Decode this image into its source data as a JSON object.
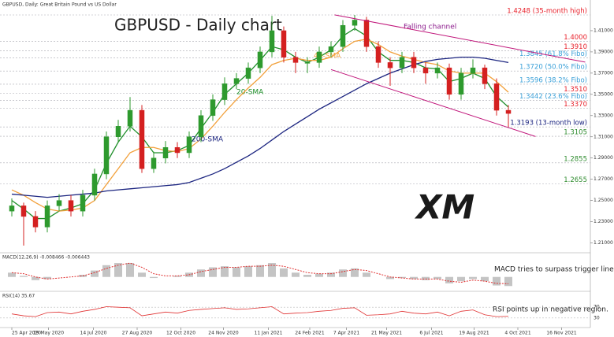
{
  "logo": "XM",
  "chart_data": [
    {
      "type": "candlestick",
      "header": "GBPUSD, Daily: Great Britain Pound vs US Dollar",
      "title": "GBPUSD - Daily chart",
      "open": [
        1.24,
        1.245,
        1.235,
        1.225,
        1.245,
        1.25,
        1.24,
        1.255,
        1.275,
        1.31,
        1.32,
        1.335,
        1.28,
        1.29,
        1.3,
        1.295,
        1.31,
        1.33,
        1.345,
        1.36,
        1.365,
        1.375,
        1.39,
        1.41,
        1.385,
        1.38,
        1.38,
        1.39,
        1.395,
        1.415,
        1.42,
        1.395,
        1.38,
        1.375,
        1.385,
        1.375,
        1.37,
        1.375,
        1.35,
        1.37,
        1.375,
        1.36,
        1.335
      ],
      "high": [
        1.252,
        1.248,
        1.24,
        1.25,
        1.256,
        1.255,
        1.26,
        1.28,
        1.315,
        1.326,
        1.3475,
        1.34,
        1.296,
        1.306,
        1.305,
        1.315,
        1.335,
        1.35,
        1.366,
        1.37,
        1.38,
        1.395,
        1.424,
        1.414,
        1.39,
        1.385,
        1.395,
        1.4,
        1.42,
        1.4248,
        1.423,
        1.4,
        1.385,
        1.39,
        1.39,
        1.38,
        1.38,
        1.379,
        1.375,
        1.383,
        1.378,
        1.365,
        1.34
      ],
      "low": [
        1.235,
        1.2075,
        1.22,
        1.22,
        1.24,
        1.235,
        1.235,
        1.25,
        1.27,
        1.305,
        1.315,
        1.276,
        1.276,
        1.285,
        1.29,
        1.29,
        1.305,
        1.325,
        1.34,
        1.355,
        1.36,
        1.37,
        1.385,
        1.38,
        1.37,
        1.37,
        1.375,
        1.385,
        1.39,
        1.41,
        1.39,
        1.375,
        1.358,
        1.37,
        1.37,
        1.36,
        1.365,
        1.345,
        1.345,
        1.365,
        1.355,
        1.33,
        1.3193
      ],
      "close": [
        1.245,
        1.235,
        1.225,
        1.245,
        1.25,
        1.24,
        1.255,
        1.275,
        1.31,
        1.32,
        1.335,
        1.28,
        1.29,
        1.3,
        1.295,
        1.31,
        1.33,
        1.345,
        1.36,
        1.365,
        1.375,
        1.39,
        1.41,
        1.385,
        1.38,
        1.38,
        1.39,
        1.395,
        1.415,
        1.42,
        1.395,
        1.38,
        1.375,
        1.385,
        1.375,
        1.37,
        1.375,
        1.35,
        1.37,
        1.375,
        1.36,
        1.335,
        1.332
      ],
      "up_color": "#2e9a2e",
      "down_color": "#d42020",
      "series": [
        {
          "name": "20-SMA",
          "color": "#1f8f2a",
          "values": [
            1.25,
            1.242,
            1.233,
            1.233,
            1.24,
            1.243,
            1.247,
            1.26,
            1.285,
            1.305,
            1.32,
            1.31,
            1.295,
            1.295,
            1.297,
            1.302,
            1.318,
            1.333,
            1.35,
            1.36,
            1.37,
            1.382,
            1.395,
            1.392,
            1.385,
            1.38,
            1.385,
            1.392,
            1.405,
            1.412,
            1.405,
            1.39,
            1.382,
            1.382,
            1.38,
            1.375,
            1.374,
            1.362,
            1.365,
            1.37,
            1.365,
            1.348,
            1.338
          ]
        },
        {
          "name": "40-SMA",
          "color": "#f2a03a",
          "values": [
            1.26,
            1.255,
            1.248,
            1.242,
            1.24,
            1.241,
            1.243,
            1.25,
            1.265,
            1.28,
            1.295,
            1.3,
            1.3,
            1.297,
            1.296,
            1.299,
            1.308,
            1.32,
            1.333,
            1.345,
            1.356,
            1.366,
            1.378,
            1.382,
            1.384,
            1.382,
            1.382,
            1.385,
            1.393,
            1.4,
            1.402,
            1.397,
            1.39,
            1.386,
            1.383,
            1.38,
            1.378,
            1.372,
            1.37,
            1.37,
            1.37,
            1.362,
            1.352
          ]
        },
        {
          "name": "200-SMA",
          "color": "#1c2580",
          "values": [
            1.256,
            1.255,
            1.254,
            1.253,
            1.254,
            1.255,
            1.256,
            1.257,
            1.259,
            1.26,
            1.261,
            1.262,
            1.263,
            1.264,
            1.265,
            1.267,
            1.271,
            1.275,
            1.28,
            1.286,
            1.292,
            1.299,
            1.307,
            1.315,
            1.322,
            1.329,
            1.336,
            1.342,
            1.348,
            1.354,
            1.36,
            1.365,
            1.37,
            1.374,
            1.378,
            1.381,
            1.383,
            1.384,
            1.385,
            1.385,
            1.384,
            1.382,
            1.38
          ]
        }
      ],
      "levels": [
        {
          "value": 1.4248,
          "label": "1.4248 (35-month high)",
          "color": "#e8202a"
        },
        {
          "value": 1.4,
          "label": "1.4000",
          "color": "#e8202a"
        },
        {
          "value": 1.391,
          "label": "1.3910",
          "color": "#e8202a"
        },
        {
          "value": 1.3845,
          "label": "1.3845 (61.8% Fibo)",
          "color": "#3aa0d8"
        },
        {
          "value": 1.372,
          "label": "1.3720 (50.0% Fibo)",
          "color": "#3aa0d8"
        },
        {
          "value": 1.3596,
          "label": "1.3596 (38.2% Fibo)",
          "color": "#3aa0d8"
        },
        {
          "value": 1.351,
          "label": "1.3510",
          "color": "#e8202a"
        },
        {
          "value": 1.3442,
          "label": "1.3442 (23.6% Fibo)",
          "color": "#3aa0d8"
        },
        {
          "value": 1.337,
          "label": "1.3370",
          "color": "#e8202a"
        },
        {
          "value": 1.3193,
          "label": "1.3193 (13-month low)",
          "color": "#1c2580"
        },
        {
          "value": 1.3105,
          "label": "1.3105",
          "color": "#2e8b2e"
        },
        {
          "value": 1.2855,
          "label": "1.2855",
          "color": "#2e8b2e"
        },
        {
          "value": 1.2655,
          "label": "1.2655",
          "color": "#2e8b2e"
        }
      ],
      "channel": {
        "name": "Falling channel",
        "color": "#c0157a",
        "lines": [
          {
            "x": [
              27,
              44.3
            ],
            "y": [
              1.3734,
              1.3103
            ]
          },
          {
            "x": [
              27.3,
              48.5
            ],
            "y": [
              1.4249,
              1.3804
            ]
          }
        ]
      },
      "ylim": [
        1.203,
        1.43
      ],
      "yticks": [
        {
          "value": 1.21,
          "label": "1.21000"
        },
        {
          "value": 1.23,
          "label": "1.23000"
        },
        {
          "value": 1.25,
          "label": "1.25000"
        },
        {
          "value": 1.27,
          "label": "1.27000"
        },
        {
          "value": 1.29,
          "label": "1.29000"
        },
        {
          "value": 1.31,
          "label": "1.31000"
        },
        {
          "value": 1.33,
          "label": "1.33000"
        },
        {
          "value": 1.35,
          "label": "1.35000"
        },
        {
          "value": 1.37,
          "label": "1.37000"
        },
        {
          "value": 1.39,
          "label": "1.39000"
        },
        {
          "value": 1.41,
          "label": "1.41000"
        }
      ]
    },
    {
      "type": "macd",
      "header": "MACD(12,26,9) -0.008466 -0.006443",
      "annotation": "MACD tries to surpass trigger line",
      "values": [
        0.004,
        0.001,
        -0.003,
        -0.002,
        0.0,
        0.0,
        0.002,
        0.006,
        0.011,
        0.013,
        0.013,
        0.004,
        -0.001,
        0.0,
        0.001,
        0.004,
        0.007,
        0.009,
        0.01,
        0.009,
        0.01,
        0.011,
        0.013,
        0.008,
        0.004,
        0.002,
        0.003,
        0.004,
        0.007,
        0.008,
        0.004,
        0.0,
        -0.002,
        -0.001,
        -0.002,
        -0.003,
        -0.002,
        -0.006,
        -0.004,
        -0.002,
        -0.004,
        -0.008,
        -0.0085
      ],
      "color": "#c4c4c4",
      "signal": {
        "color": "#e03030",
        "values": [
          0.004,
          0.003,
          0.0,
          -0.002,
          -0.001,
          0.0,
          0.001,
          0.004,
          0.008,
          0.011,
          0.013,
          0.009,
          0.003,
          0.001,
          0.001,
          0.002,
          0.005,
          0.007,
          0.009,
          0.009,
          0.01,
          0.01,
          0.011,
          0.01,
          0.007,
          0.004,
          0.003,
          0.003,
          0.005,
          0.007,
          0.006,
          0.003,
          0.0,
          -0.001,
          -0.002,
          -0.002,
          -0.002,
          -0.004,
          -0.005,
          -0.003,
          -0.004,
          -0.006,
          -0.0064
        ]
      },
      "ylim": [
        -0.012,
        0.016
      ]
    },
    {
      "type": "line",
      "header": "RSI(14) 35.67",
      "annotation": "RSI points up in negative region.",
      "color": "#e03030",
      "values": [
        45,
        38,
        35,
        50,
        52,
        45,
        55,
        62,
        72,
        70,
        68,
        38,
        45,
        52,
        48,
        58,
        62,
        65,
        68,
        62,
        64,
        68,
        72,
        45,
        48,
        50,
        55,
        58,
        66,
        68,
        40,
        42,
        45,
        55,
        48,
        45,
        52,
        38,
        55,
        60,
        42,
        35,
        36
      ],
      "ylim": [
        0,
        100
      ],
      "yticks": [
        30,
        70
      ],
      "xticks": [
        {
          "value": 0,
          "label": "25 Apr 2020"
        },
        {
          "value": 3.1,
          "label": "29 May 2020"
        },
        {
          "value": 6.9,
          "label": "14 Jul 2020"
        },
        {
          "value": 10.6,
          "label": "27 Aug 2020"
        },
        {
          "value": 14.3,
          "label": "12 Oct 2020"
        },
        {
          "value": 17.9,
          "label": "24 Nov 2020"
        },
        {
          "value": 21.7,
          "label": "11 Jan 2021"
        },
        {
          "value": 25.2,
          "label": "24 Feb 2021"
        },
        {
          "value": 28.3,
          "label": "7 Apr 2021"
        },
        {
          "value": 31.7,
          "label": "21 May 2021"
        },
        {
          "value": 35.5,
          "label": "6 Jul 2021"
        },
        {
          "value": 39.1,
          "label": "19 Aug 2021"
        },
        {
          "value": 42.8,
          "label": "4 Oct 2021"
        },
        {
          "value": 46.5,
          "label": "16 Nov 2021"
        }
      ]
    }
  ]
}
